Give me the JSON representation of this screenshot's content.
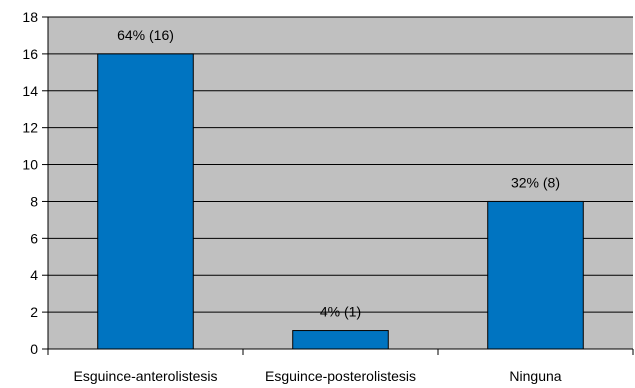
{
  "chart_data": {
    "type": "bar",
    "title": "",
    "xlabel": "",
    "ylabel": "",
    "categories": [
      "Esguince-anterolistesis",
      "Esguince-posterolistesis",
      "Ninguna"
    ],
    "values": [
      16,
      1,
      8
    ],
    "data_labels": [
      "64% (16)",
      "4% (1)",
      "32% (8)"
    ],
    "ylim": [
      0,
      18
    ],
    "yticks": [
      0,
      2,
      4,
      6,
      8,
      10,
      12,
      14,
      16,
      18
    ],
    "grid": true,
    "legend": "none",
    "colors": {
      "bar_fill": "#0074C1",
      "bar_stroke": "#000000",
      "plot_background": "#C0C0C0",
      "gridline": "#000000"
    }
  }
}
